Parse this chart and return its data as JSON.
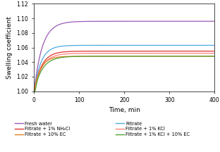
{
  "xlabel": "Time, min",
  "ylabel": "Swelling coefficient",
  "xlim": [
    0,
    400
  ],
  "ylim": [
    1.0,
    1.12
  ],
  "yticks": [
    1.0,
    1.02,
    1.04,
    1.06,
    1.08,
    1.1,
    1.12
  ],
  "xticks": [
    0,
    100,
    200,
    300,
    400
  ],
  "curves": [
    {
      "label": "Fresh water",
      "color": "#9B59B6",
      "y0": 1.0,
      "y_mid": 1.083,
      "y_end": 1.096,
      "k": 0.055
    },
    {
      "label": "Filtrate",
      "color": "#4DAADF",
      "y0": 1.0,
      "y_mid": 1.055,
      "y_end": 1.063,
      "k": 0.065
    },
    {
      "label": "Filtrate + 1% NH4Cl",
      "color": "#E03030",
      "y0": 1.0,
      "y_mid": 1.038,
      "y_end": 1.055,
      "k": 0.06
    },
    {
      "label": "Filtrate + 1% KCl",
      "color": "#FF8080",
      "y0": 1.0,
      "y_mid": 1.036,
      "y_end": 1.052,
      "k": 0.058
    },
    {
      "label": "Filtrate + 10% EC",
      "color": "#E08020",
      "y0": 1.0,
      "y_mid": 1.045,
      "y_end": 1.048,
      "k": 0.07
    },
    {
      "label": "Filtrate + 1% KCl + 10% EC",
      "color": "#50A030",
      "y0": 1.0,
      "y_mid": 1.03,
      "y_end": 1.048,
      "k": 0.055
    }
  ],
  "legend_labels_left": [
    "Fresh water",
    "Filtrate + 1% NH₄Cl",
    "Filtrate + 10% EC"
  ],
  "legend_labels_right": [
    "Filtrate",
    "Filtrate + 1% KCl",
    "Filtrate + 1% KCl + 10% EC"
  ],
  "legend_colors_left": [
    "#9B59B6",
    "#E03030",
    "#E08020"
  ],
  "legend_colors_right": [
    "#4DAADF",
    "#FF8080",
    "#50A030"
  ]
}
